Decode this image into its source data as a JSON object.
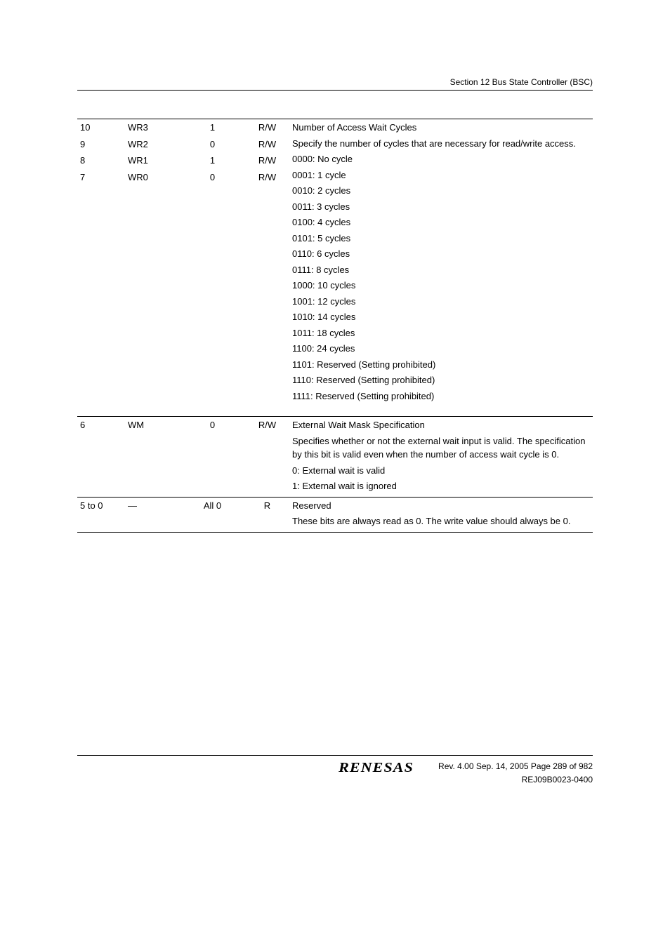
{
  "header": {
    "section": "Section 12   Bus State Controller (BSC)"
  },
  "table": {
    "rows": [
      {
        "bit": "10",
        "name": "WR3",
        "init": "1",
        "rw": "R/W"
      },
      {
        "bit": "9",
        "name": "WR2",
        "init": "0",
        "rw": "R/W"
      },
      {
        "bit": "8",
        "name": "WR1",
        "init": "1",
        "rw": "R/W"
      },
      {
        "bit": "7",
        "name": "WR0",
        "init": "0",
        "rw": "R/W"
      }
    ],
    "group1_desc": [
      "Number of Access Wait Cycles",
      "Specify the number of cycles that are necessary for read/write access.",
      "0000: No cycle",
      "0001: 1 cycle",
      "0010: 2 cycles",
      "0011: 3 cycles",
      "0100: 4 cycles",
      "0101: 5 cycles",
      "0110: 6 cycles",
      "0111: 8 cycles",
      "1000: 10 cycles",
      "1001: 12 cycles",
      "1010: 14 cycles",
      "1011: 18 cycles",
      "1100: 24 cycles",
      "1101: Reserved (Setting prohibited)",
      "1110: Reserved (Setting prohibited)",
      "1111: Reserved (Setting prohibited)"
    ],
    "row_wm": {
      "bit": "6",
      "name": "WM",
      "init": "0",
      "rw": "R/W"
    },
    "wm_desc": [
      "External Wait Mask Specification",
      "Specifies whether or not the external wait input is valid. The specification by this bit is valid even when the number of access wait cycle is 0.",
      "0: External wait is valid",
      "1: External wait is ignored"
    ],
    "row_res": {
      "bit": "5 to 0",
      "name": "—",
      "init": "All 0",
      "rw": "R"
    },
    "res_desc": [
      "Reserved",
      "These bits are always read as 0. The write value should always be 0."
    ]
  },
  "footer": {
    "logo": "RENESAS",
    "rev": "Rev. 4.00  Sep. 14, 2005  Page 289 of 982",
    "doc": "REJ09B0023-0400"
  }
}
